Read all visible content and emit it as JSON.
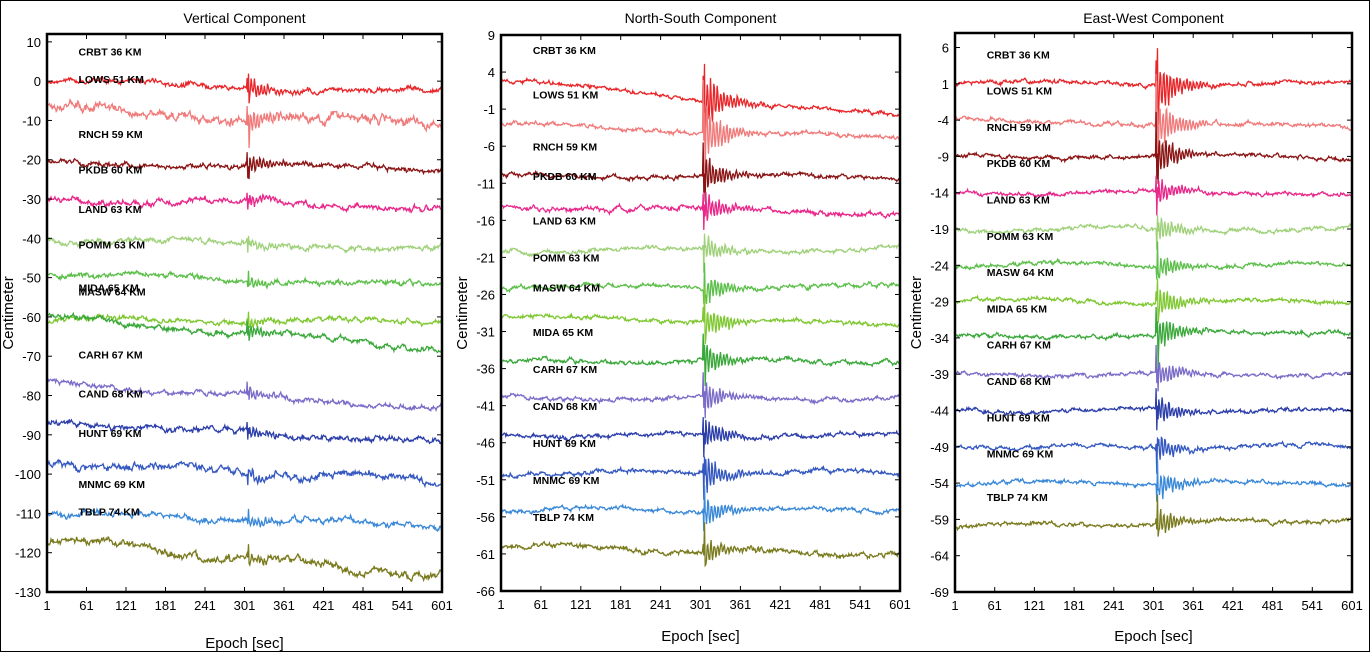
{
  "chart_data": [
    {
      "type": "line",
      "title": "Vertical Component",
      "xlabel": "Epoch [sec]",
      "ylabel": "Centimeter",
      "xlim": [
        1,
        601
      ],
      "ylim": [
        -130,
        12
      ],
      "xticks": [
        1,
        61,
        121,
        181,
        241,
        301,
        361,
        421,
        481,
        541,
        601
      ],
      "yticks": [
        10,
        0,
        -10,
        -20,
        -30,
        -40,
        -50,
        -60,
        -70,
        -80,
        -90,
        -100,
        -110,
        -120,
        -130
      ],
      "series": [
        {
          "name": "CRBT  36 KM",
          "color": "#e8262a",
          "offset": 0,
          "start": 0,
          "end": -3,
          "noise": 0.7,
          "burst": 3
        },
        {
          "name": "LOWS  51 KM",
          "color": "#f07a7a",
          "offset": -9,
          "start": -7,
          "end": -11,
          "noise": 1.2,
          "burst": 3
        },
        {
          "name": "RNCH  59 KM",
          "color": "#8b1414",
          "offset": -20,
          "start": -21,
          "end": -22,
          "noise": 0.7,
          "burst": 2.5
        },
        {
          "name": "PKDB  60 KM",
          "color": "#e8288a",
          "offset": -30,
          "start": -30,
          "end": -32,
          "noise": 0.8,
          "burst": 1.5
        },
        {
          "name": "LAND  63 KM",
          "color": "#9fd17a",
          "offset": -40,
          "start": -40,
          "end": -43,
          "noise": 0.7,
          "burst": 1.5
        },
        {
          "name": "POMM  63 KM",
          "color": "#5cbf4a",
          "offset": -50,
          "start": -49,
          "end": -52,
          "noise": 0.7,
          "burst": 1.5
        },
        {
          "name": "MASW  64 KM",
          "color": "#7fc832",
          "offset": -60,
          "start": -61,
          "end": -61,
          "noise": 0.7,
          "burst": 1.5
        },
        {
          "name": "MIDA  65 KM",
          "color": "#3aa83a",
          "offset": -70,
          "start": -60,
          "end": -68,
          "noise": 0.7,
          "burst": 1.5
        },
        {
          "name": "CARH  67 KM",
          "color": "#7a6cc8",
          "offset": -80,
          "start": -77,
          "end": -83,
          "noise": 0.7,
          "burst": 1.5
        },
        {
          "name": "CAND  68 KM",
          "color": "#2c3eaa",
          "offset": -90,
          "start": -87,
          "end": -92,
          "noise": 0.8,
          "burst": 1.5
        },
        {
          "name": "HUNT  69 KM",
          "color": "#3458c0",
          "offset": -100,
          "start": -97,
          "end": -102,
          "noise": 1.0,
          "burst": 1.5
        },
        {
          "name": "MNMC  69 KM",
          "color": "#3a88d8",
          "offset": -110,
          "start": -110,
          "end": -113,
          "noise": 0.8,
          "burst": 1.5
        },
        {
          "name": "TBLP  74 KM",
          "color": "#7a7a1e",
          "offset": -120,
          "start": -117,
          "end": -126,
          "noise": 1.0,
          "burst": 1.5
        }
      ]
    },
    {
      "type": "line",
      "title": "North-South Component",
      "xlabel": "Epoch [sec]",
      "ylabel": "Centimeter",
      "xlim": [
        1,
        601
      ],
      "ylim": [
        -66,
        9
      ],
      "xticks": [
        1,
        61,
        121,
        181,
        241,
        301,
        361,
        421,
        481,
        541,
        601
      ],
      "yticks": [
        9,
        4,
        -1,
        -6,
        -11,
        -16,
        -21,
        -26,
        -31,
        -36,
        -41,
        -46,
        -51,
        -56,
        -61,
        -66
      ],
      "series": [
        {
          "name": "CRBT  36 KM",
          "color": "#e8262a",
          "offset": 0,
          "start": 3,
          "end": -2,
          "noise": 0.3,
          "burst": 4
        },
        {
          "name": "LOWS  51 KM",
          "color": "#f07a7a",
          "offset": -5,
          "start": -3,
          "end": -5,
          "noise": 0.3,
          "burst": 4
        },
        {
          "name": "RNCH  59 KM",
          "color": "#8b1414",
          "offset": -10,
          "start": -10,
          "end": -10,
          "noise": 0.3,
          "burst": 2.5
        },
        {
          "name": "PKDB  60 KM",
          "color": "#e8288a",
          "offset": -15,
          "start": -14,
          "end": -15,
          "noise": 0.35,
          "burst": 2
        },
        {
          "name": "LAND  63 KM",
          "color": "#9fd17a",
          "offset": -20,
          "start": -20,
          "end": -20,
          "noise": 0.3,
          "burst": 1.8
        },
        {
          "name": "POMM  63 KM",
          "color": "#5cbf4a",
          "offset": -25,
          "start": -25,
          "end": -25,
          "noise": 0.3,
          "burst": 2
        },
        {
          "name": "MASW  64 KM",
          "color": "#7fc832",
          "offset": -30,
          "start": -29,
          "end": -30,
          "noise": 0.3,
          "burst": 2.5
        },
        {
          "name": "MIDA  65 KM",
          "color": "#3aa83a",
          "offset": -35,
          "start": -35,
          "end": -35,
          "noise": 0.3,
          "burst": 2.5
        },
        {
          "name": "CARH  67 KM",
          "color": "#7a6cc8",
          "offset": -40,
          "start": -40,
          "end": -40,
          "noise": 0.3,
          "burst": 2
        },
        {
          "name": "CAND  68 KM",
          "color": "#2c3eaa",
          "offset": -45,
          "start": -45,
          "end": -45,
          "noise": 0.3,
          "burst": 2
        },
        {
          "name": "HUNT  69 KM",
          "color": "#3458c0",
          "offset": -50,
          "start": -50,
          "end": -50,
          "noise": 0.35,
          "burst": 2.5
        },
        {
          "name": "MNMC  69 KM",
          "color": "#3a88d8",
          "offset": -55,
          "start": -55,
          "end": -55,
          "noise": 0.3,
          "burst": 2
        },
        {
          "name": "TBLP  74 KM",
          "color": "#7a7a1e",
          "offset": -60,
          "start": -60,
          "end": -61,
          "noise": 0.35,
          "burst": 2
        }
      ]
    },
    {
      "type": "line",
      "title": "East-West Component",
      "xlabel": "Epoch [sec]",
      "ylabel": "Centimeter",
      "xlim": [
        1,
        601
      ],
      "ylim": [
        -69,
        8
      ],
      "xticks": [
        1,
        61,
        121,
        181,
        241,
        301,
        361,
        421,
        481,
        541,
        601
      ],
      "yticks": [
        6,
        1,
        -4,
        -9,
        -14,
        -19,
        -24,
        -29,
        -34,
        -39,
        -44,
        -49,
        -54,
        -59,
        -64,
        -69
      ],
      "series": [
        {
          "name": "CRBT  36 KM",
          "color": "#e8262a",
          "offset": 0,
          "start": 1,
          "end": 1,
          "noise": 0.3,
          "burst": 4
        },
        {
          "name": "LOWS  51 KM",
          "color": "#f07a7a",
          "offset": -5,
          "start": -4,
          "end": -5,
          "noise": 0.3,
          "burst": 3.5
        },
        {
          "name": "RNCH  59 KM",
          "color": "#8b1414",
          "offset": -10,
          "start": -9,
          "end": -9,
          "noise": 0.3,
          "burst": 3
        },
        {
          "name": "PKDB  60 KM",
          "color": "#e8288a",
          "offset": -15,
          "start": -14,
          "end": -14,
          "noise": 0.3,
          "burst": 2
        },
        {
          "name": "LAND  63 KM",
          "color": "#9fd17a",
          "offset": -20,
          "start": -19,
          "end": -19,
          "noise": 0.3,
          "burst": 1.8
        },
        {
          "name": "POMM  63 KM",
          "color": "#5cbf4a",
          "offset": -25,
          "start": -24,
          "end": -24,
          "noise": 0.3,
          "burst": 1.8
        },
        {
          "name": "MASW  64 KM",
          "color": "#7fc832",
          "offset": -30,
          "start": -29,
          "end": -29,
          "noise": 0.3,
          "burst": 2.5
        },
        {
          "name": "MIDA  65 KM",
          "color": "#3aa83a",
          "offset": -35,
          "start": -34,
          "end": -33,
          "noise": 0.3,
          "burst": 2.5
        },
        {
          "name": "CARH  67 KM",
          "color": "#7a6cc8",
          "offset": -40,
          "start": -39,
          "end": -39,
          "noise": 0.3,
          "burst": 2
        },
        {
          "name": "CAND  68 KM",
          "color": "#2c3eaa",
          "offset": -45,
          "start": -44,
          "end": -44,
          "noise": 0.3,
          "burst": 2
        },
        {
          "name": "HUNT  69 KM",
          "color": "#3458c0",
          "offset": -50,
          "start": -49,
          "end": -49,
          "noise": 0.3,
          "burst": 2
        },
        {
          "name": "MNMC  69 KM",
          "color": "#3a88d8",
          "offset": -55,
          "start": -54,
          "end": -54,
          "noise": 0.3,
          "burst": 2
        },
        {
          "name": "TBLP  74 KM",
          "color": "#7a7a1e",
          "offset": -60,
          "start": -60,
          "end": -59,
          "noise": 0.3,
          "burst": 2
        }
      ]
    }
  ]
}
